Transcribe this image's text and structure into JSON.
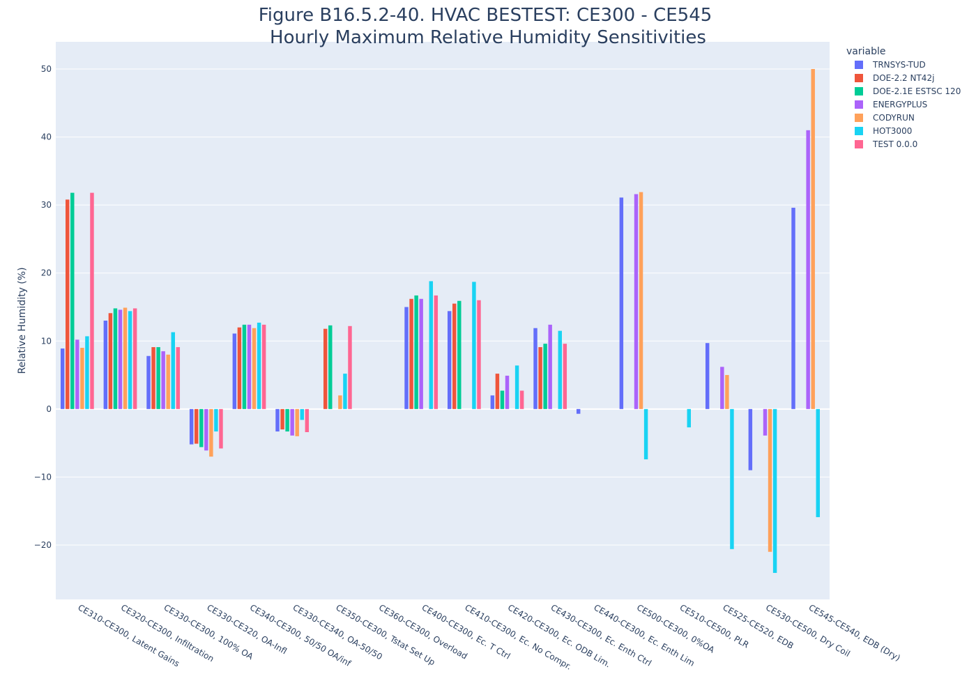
{
  "chart_data": {
    "type": "bar",
    "title_line1": "Figure B16.5.2-40. HVAC BESTEST: CE300 - CE545",
    "title_line2": "Hourly Maximum Relative Humidity Sensitivities",
    "ylabel": "Relative Humidity (%)",
    "xlabel": "",
    "ylim": [
      -28,
      54
    ],
    "yticks": [
      -20,
      -10,
      0,
      10,
      20,
      30,
      40,
      50
    ],
    "legend_title": "variable",
    "legend_position": "top-right",
    "grid": true,
    "categories": [
      "CE310-CE300, Latent Gains",
      "CE320-CE300, Infiltration",
      "CE330-CE300, 100% OA",
      "CE330-CE320, OA-Infl",
      "CE340-CE300, 50/50 OA/inf",
      "CE330-CE340, OA-50/50",
      "CE350-CE300, Tstat Set Up",
      "CE360-CE300, Overload",
      "CE400-CE300, Ec. T Ctrl",
      "CE410-CE300, Ec. No Compr.",
      "CE420-CE300, Ec. ODB Lim.",
      "CE430-CE300, Ec. Enth Ctrl",
      "CE440-CE300, Ec. Enth Lim",
      "CE500-CE300, 0%OA",
      "CE510-CE500, PLR",
      "CE525-CE520, EDB",
      "CE530-CE500, Dry Coil",
      "CE545-CE540, EDB (Dry)"
    ],
    "series": [
      {
        "name": "TRNSYS-TUD",
        "color": "#636efa",
        "values": [
          8.9,
          13.0,
          7.8,
          -5.2,
          11.1,
          -3.3,
          0,
          0,
          15.0,
          14.4,
          2.0,
          11.9,
          -0.7,
          31.1,
          0,
          9.7,
          -9.0,
          29.6
        ]
      },
      {
        "name": "DOE-2.2 NT42j",
        "color": "#ef553b",
        "values": [
          30.8,
          14.1,
          9.1,
          -5.1,
          12.0,
          -3.0,
          11.8,
          0,
          16.2,
          15.5,
          5.2,
          9.1,
          0,
          0,
          0,
          0,
          0,
          0
        ]
      },
      {
        "name": "DOE-2.1E ESTSC 120",
        "color": "#00cc96",
        "values": [
          31.8,
          14.8,
          9.1,
          -5.6,
          12.4,
          -3.3,
          12.3,
          0,
          16.7,
          15.9,
          2.7,
          9.6,
          0,
          0,
          0,
          0,
          0,
          0
        ]
      },
      {
        "name": "ENERGYPLUS",
        "color": "#ab63fa",
        "values": [
          10.2,
          14.6,
          8.5,
          -6.1,
          12.4,
          -3.9,
          0,
          0,
          16.2,
          0,
          4.9,
          12.4,
          0,
          31.6,
          0,
          6.2,
          -3.9,
          41.0
        ]
      },
      {
        "name": "CODYRUN",
        "color": "#ffa15a",
        "values": [
          9.0,
          14.9,
          8.0,
          -7.0,
          11.9,
          -4.0,
          2.0,
          0,
          0,
          0,
          0,
          0,
          0,
          31.9,
          0,
          5.0,
          -21.0,
          50.0
        ]
      },
      {
        "name": "HOT3000",
        "color": "#19d3f3",
        "values": [
          10.7,
          14.4,
          11.3,
          -3.3,
          12.7,
          -1.6,
          5.2,
          0,
          18.8,
          18.7,
          6.4,
          11.5,
          0,
          -7.4,
          -2.7,
          -20.6,
          -24.1,
          -15.9
        ]
      },
      {
        "name": "TEST 0.0.0",
        "color": "#ff6692",
        "values": [
          31.8,
          14.8,
          9.1,
          -5.8,
          12.4,
          -3.4,
          12.2,
          0,
          16.7,
          16.0,
          2.7,
          9.6,
          0,
          0,
          0,
          0,
          0,
          0
        ]
      }
    ]
  }
}
